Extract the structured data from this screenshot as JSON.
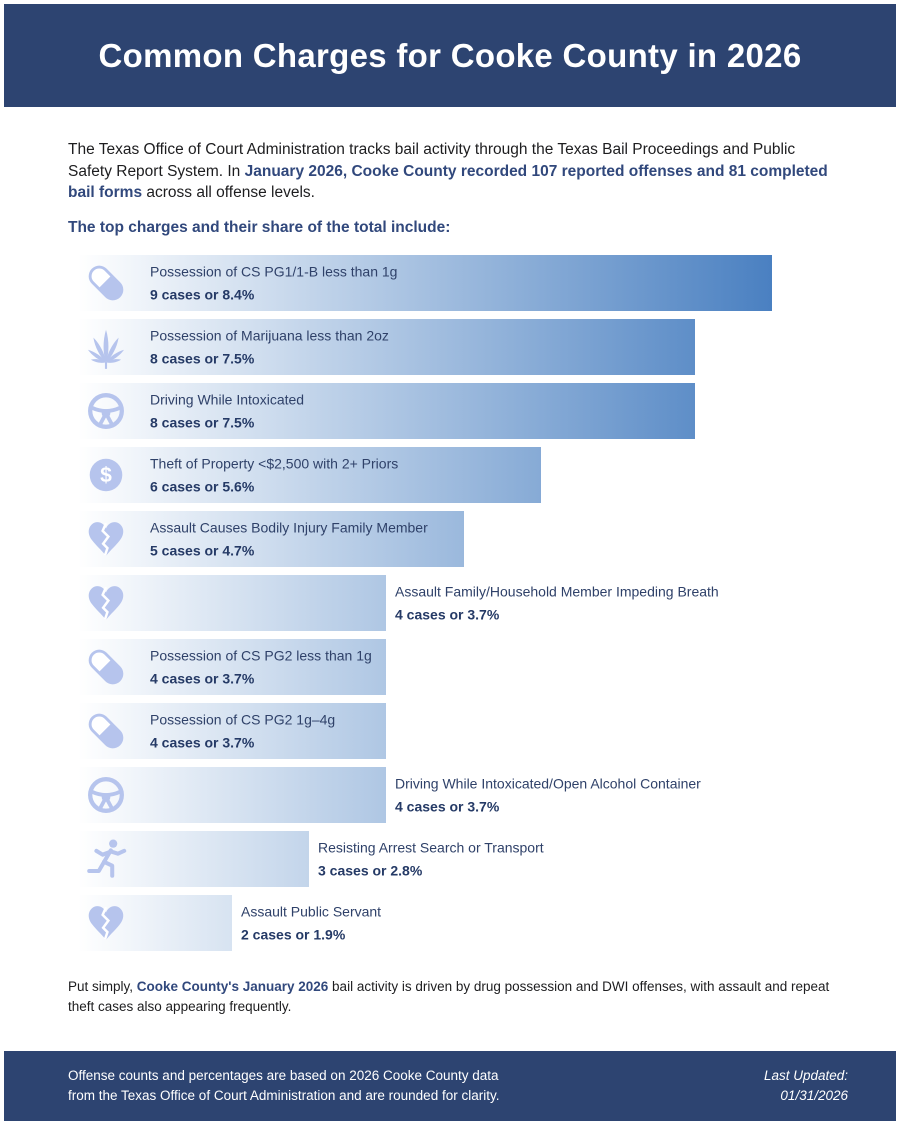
{
  "header": {
    "title": "Common Charges for Cooke County in 2026"
  },
  "intro": {
    "segments": [
      {
        "text": "The Texas Office of Court Administration tracks bail activity through the Texas Bail Proceedings and Public Safety Report System. In ",
        "bold": false
      },
      {
        "text": "January 2026, Cooke County recorded 107 reported offenses and 81 completed bail forms",
        "bold": true
      },
      {
        "text": " across all offense levels.",
        "bold": false
      }
    ]
  },
  "subhead": "The top charges and their share of the total include:",
  "chart_data": {
    "type": "bar",
    "orientation": "horizontal",
    "title": "The top charges and their share of the total include:",
    "unit": "cases",
    "total_reported_offenses": 107,
    "completed_bail_forms": 81,
    "value_suffix_template": "{cases} cases or {pct}%",
    "max_cases": 9,
    "series": [
      {
        "label": "Possession of CS PG1/1-B less than 1g",
        "cases": 9,
        "pct": 8.4,
        "icon": "pill",
        "label_position": "inside"
      },
      {
        "label": "Possession of Marijuana less than 2oz",
        "cases": 8,
        "pct": 7.5,
        "icon": "marijuana-leaf",
        "label_position": "inside"
      },
      {
        "label": "Driving While Intoxicated",
        "cases": 8,
        "pct": 7.5,
        "icon": "steering-wheel",
        "label_position": "inside"
      },
      {
        "label": "Theft of Property <$2,500 with 2+ Priors",
        "cases": 6,
        "pct": 5.6,
        "icon": "dollar",
        "label_position": "inside"
      },
      {
        "label": "Assault Causes Bodily Injury Family Member",
        "cases": 5,
        "pct": 4.7,
        "icon": "broken-heart",
        "label_position": "inside"
      },
      {
        "label": "Assault Family/Household Member Impeding Breath",
        "cases": 4,
        "pct": 3.7,
        "icon": "broken-heart",
        "label_position": "outside"
      },
      {
        "label": "Possession of CS PG2 less than 1g",
        "cases": 4,
        "pct": 3.7,
        "icon": "pill",
        "label_position": "inside"
      },
      {
        "label": "Possession of CS PG2 1g–4g",
        "cases": 4,
        "pct": 3.7,
        "icon": "pill",
        "label_position": "inside"
      },
      {
        "label": "Driving While Intoxicated/Open Alcohol Container",
        "cases": 4,
        "pct": 3.7,
        "icon": "steering-wheel",
        "label_position": "outside"
      },
      {
        "label": "Resisting Arrest Search or Transport",
        "cases": 3,
        "pct": 2.8,
        "icon": "runner",
        "label_position": "outside"
      },
      {
        "label": "Assault Public Servant",
        "cases": 2,
        "pct": 1.9,
        "icon": "broken-heart",
        "label_position": "outside"
      }
    ],
    "legend": "none",
    "grid": false,
    "xlim_pct": [
      0,
      8.4
    ]
  },
  "summary": {
    "segments": [
      {
        "text": "Put simply, ",
        "bold": false
      },
      {
        "text": "Cooke County's January 2026",
        "bold": true
      },
      {
        "text": " bail activity is driven by drug possession and DWI offenses, with assault and repeat theft cases also appearing frequently.",
        "bold": false
      }
    ]
  },
  "footer": {
    "note": "Offense counts and percentages are based on 2026 Cooke County data from the Texas Office of Court Administration and are rounded for clarity.",
    "last_updated_label": "Last Updated:",
    "last_updated_date": "01/31/2026"
  },
  "colors": {
    "navy": "#2d4471",
    "bold_blue": "#31487c",
    "bar_label": "#2f4169",
    "bar_value": "#253a66",
    "bar_gradient_end": "#4a80c1",
    "icon": "#b6c4ed",
    "body_text": "#1d1d1f"
  }
}
